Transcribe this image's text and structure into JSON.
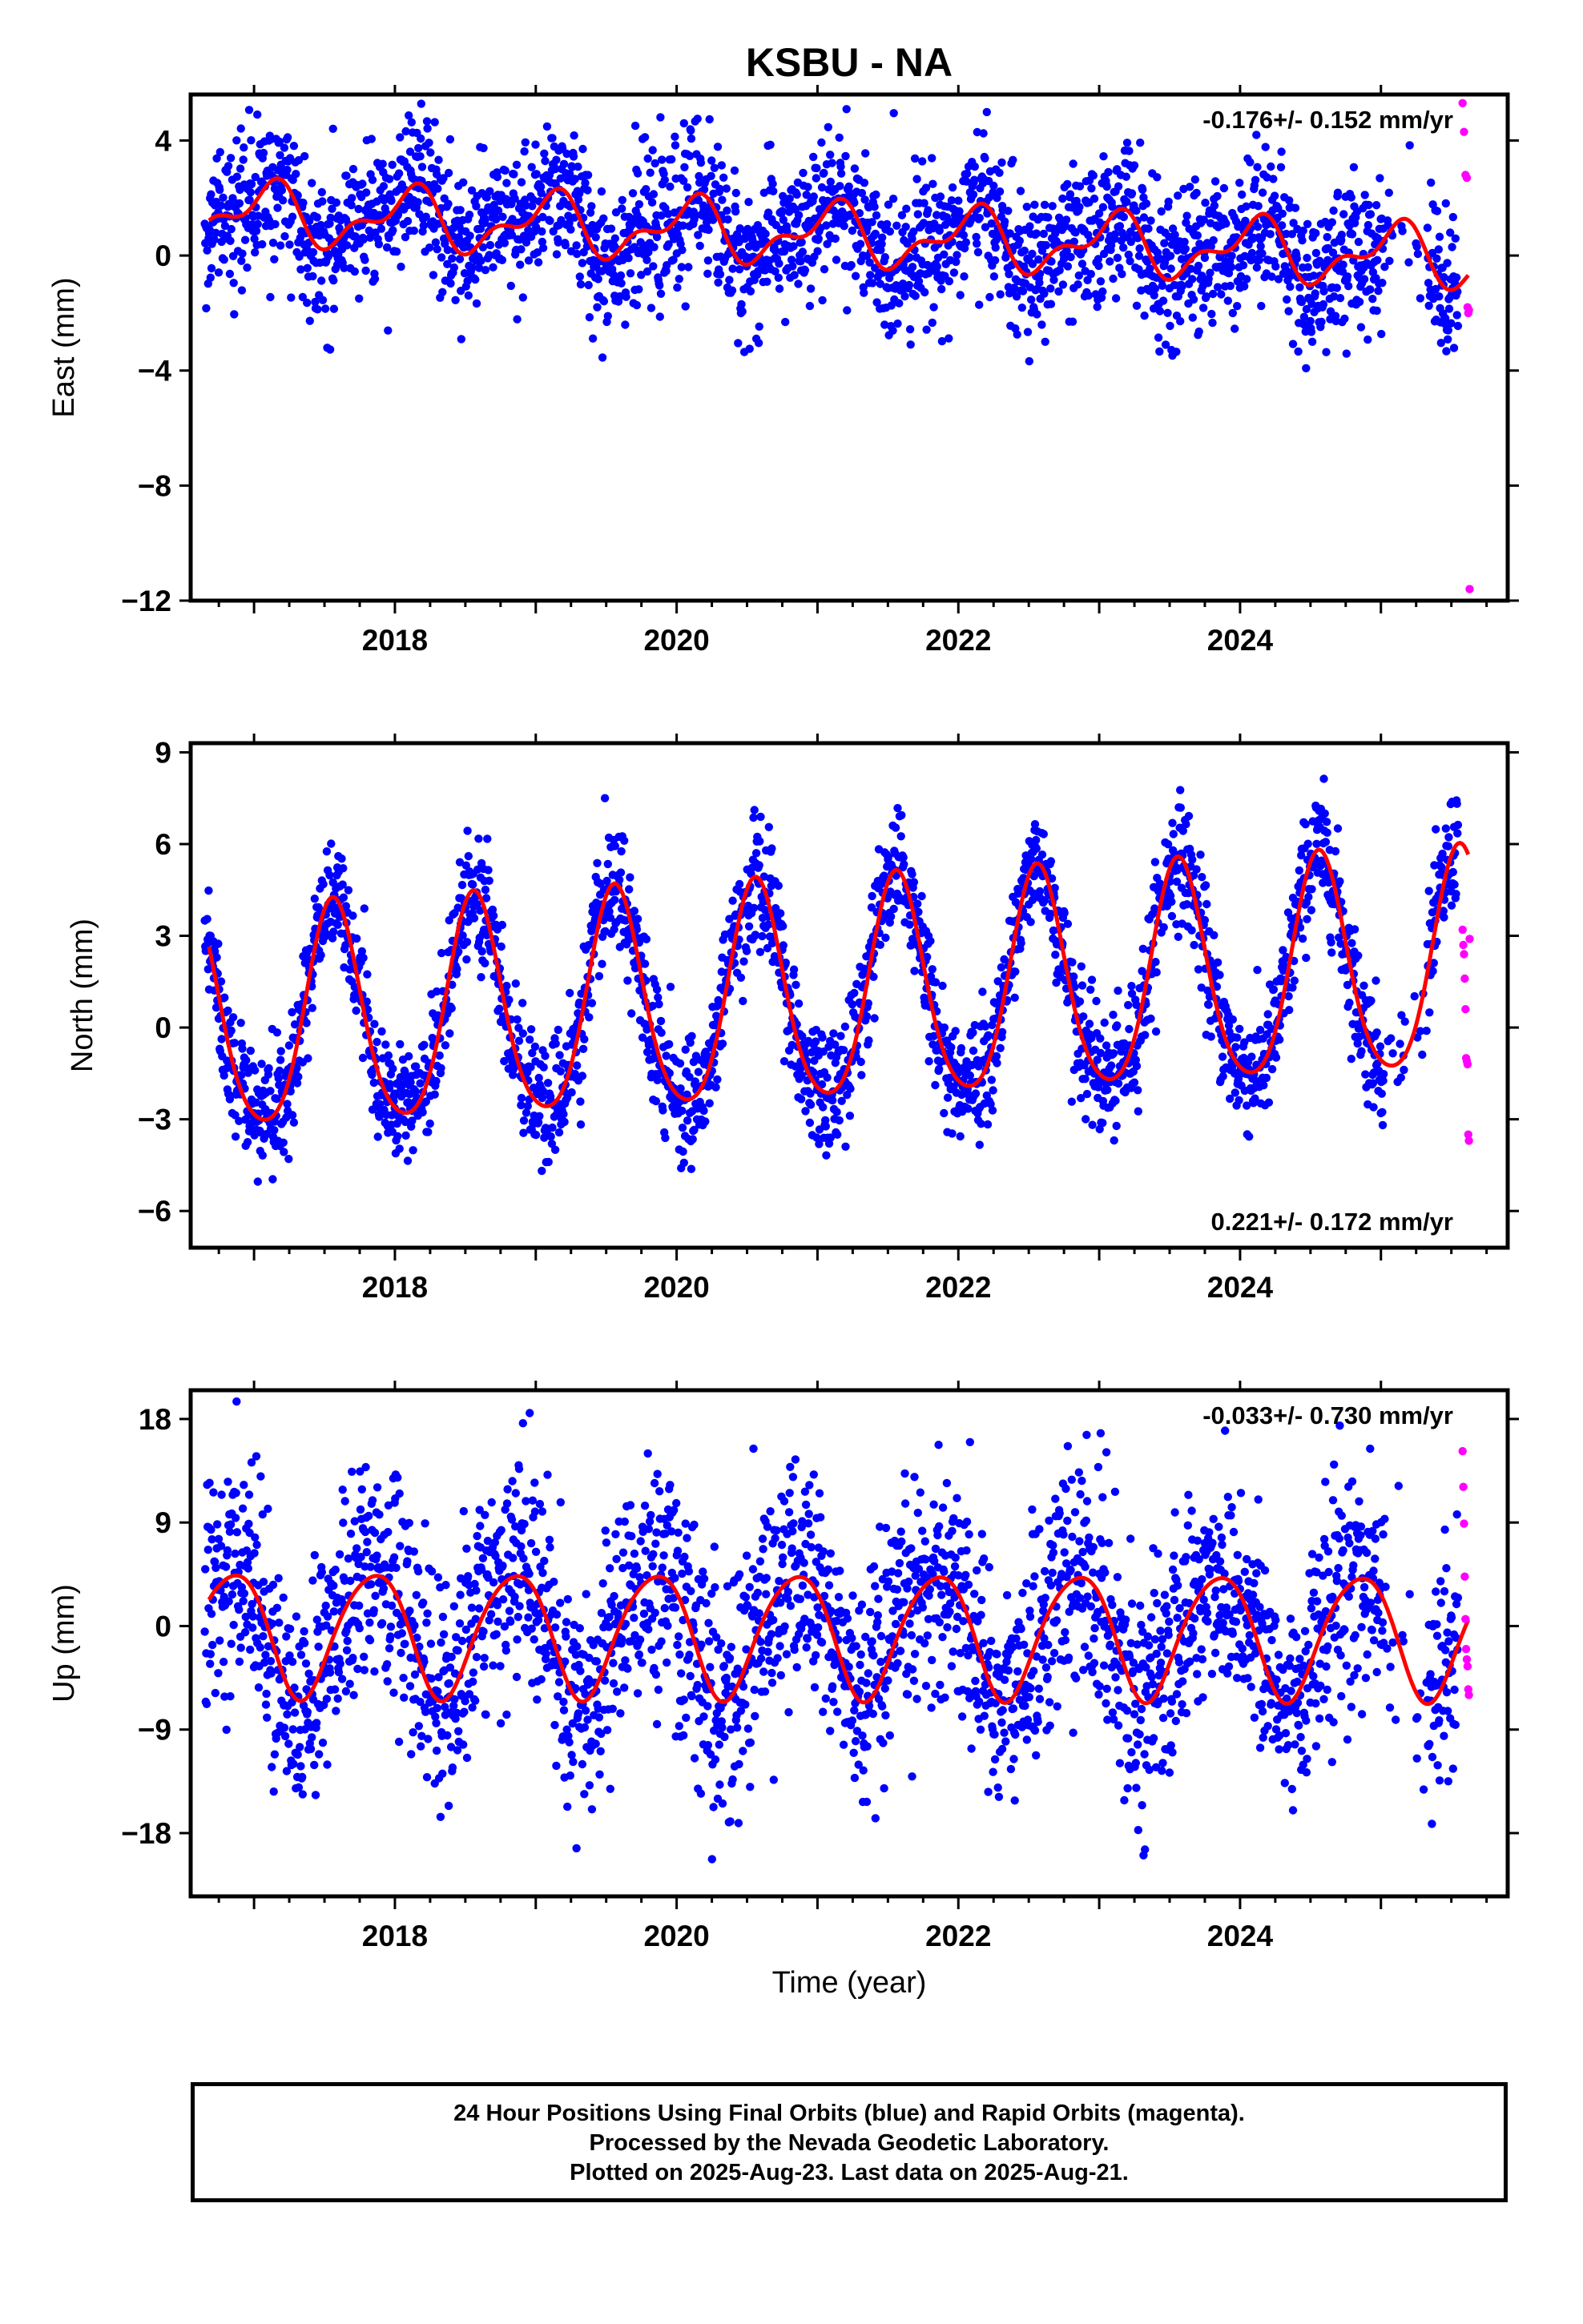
{
  "title": "KSBU - NA",
  "colors": {
    "final": "#0000ff",
    "rapid": "#ff00ff",
    "model": "#ff0000",
    "axis": "#000000"
  },
  "footer": {
    "line1": "24 Hour Positions Using Final Orbits (blue) and Rapid Orbits (magenta).",
    "line2": "Processed by the Nevada Geodetic Laboratory.",
    "line3": "Plotted on 2025-Aug-23. Last data on 2025-Aug-21."
  },
  "chart_data": [
    {
      "type": "scatter",
      "component": "east",
      "ylabel": "East (mm)",
      "xlabel": "",
      "rate_label": "-0.176+/- 0.152 mm/yr",
      "rate_position": "top-right",
      "xlim": [
        2016.55,
        2025.9
      ],
      "ylim": [
        -12,
        5.6
      ],
      "x_ticks": [
        2018,
        2020,
        2022,
        2024
      ],
      "y_ticks": [
        4,
        0,
        -4,
        -8,
        -12
      ],
      "final_span": [
        2016.65,
        2025.55
      ],
      "model": {
        "offset": 1.5,
        "rate": -0.176,
        "annual_cos": 0.75,
        "annual_sin": 0.5,
        "semi_cos": -0.4,
        "semi_sin": 0.3,
        "ref_year": 2016.7
      },
      "scatter_sd": 1.25,
      "rapid_x": [
        2025.58,
        2025.59,
        2025.6,
        2025.61,
        2025.615,
        2025.62,
        2025.625,
        2025.63
      ],
      "rapid_y": [
        5.3,
        4.3,
        2.8,
        2.7,
        -1.8,
        -2.0,
        -1.9,
        -11.6
      ]
    },
    {
      "type": "scatter",
      "component": "north",
      "ylabel": "North (mm)",
      "xlabel": "",
      "rate_label": "0.221+/- 0.172 mm/yr",
      "rate_position": "bottom-right",
      "xlim": [
        2016.55,
        2025.9
      ],
      "ylim": [
        -7.2,
        9.3
      ],
      "x_ticks": [
        2018,
        2020,
        2022,
        2024
      ],
      "y_ticks": [
        9,
        6,
        3,
        0,
        -3,
        -6
      ],
      "final_span": [
        2016.65,
        2025.55
      ],
      "model": {
        "offset": 0.0,
        "rate": 0.221,
        "annual_cos": -3.3,
        "annual_sin": -1.4,
        "semi_cos": 0.4,
        "semi_sin": 0.3,
        "ref_year": 2016.7
      },
      "scatter_sd": 1.0,
      "rapid_x": [
        2025.58,
        2025.585,
        2025.59,
        2025.595,
        2025.6,
        2025.605,
        2025.61,
        2025.615,
        2025.62,
        2025.625,
        2025.63
      ],
      "rapid_y": [
        3.2,
        2.7,
        2.4,
        1.6,
        0.6,
        -1.0,
        -1.1,
        -1.2,
        -3.5,
        -3.7,
        2.9
      ]
    },
    {
      "type": "scatter",
      "component": "up",
      "ylabel": "Up (mm)",
      "xlabel": "Time (year)",
      "rate_label": "-0.033+/- 0.730 mm/yr",
      "rate_position": "top-right",
      "xlim": [
        2016.55,
        2025.9
      ],
      "ylim": [
        -23.5,
        20.5
      ],
      "x_ticks": [
        2018,
        2020,
        2022,
        2024
      ],
      "y_ticks": [
        18,
        9,
        0,
        -9,
        -18
      ],
      "final_span": [
        2016.65,
        2025.55
      ],
      "model": {
        "offset": -0.5,
        "rate": -0.033,
        "annual_cos": 3.0,
        "annual_sin": -4.5,
        "semi_cos": 0.5,
        "semi_sin": 0.4,
        "ref_year": 2016.7
      },
      "scatter_sd": 5.0,
      "rapid_x": [
        2025.58,
        2025.585,
        2025.59,
        2025.595,
        2025.6,
        2025.605,
        2025.61,
        2025.615,
        2025.62,
        2025.625
      ],
      "rapid_y": [
        15.2,
        12.1,
        8.9,
        4.3,
        0.6,
        -2.0,
        -2.9,
        -3.5,
        -5.5,
        -6.0
      ]
    }
  ]
}
